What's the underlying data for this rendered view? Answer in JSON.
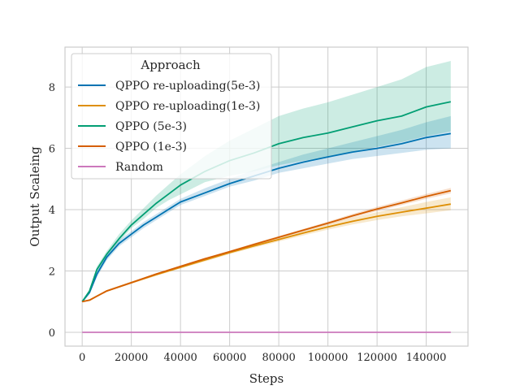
{
  "chart_data": {
    "type": "line",
    "title": "",
    "xlabel": "Steps",
    "ylabel": "Output Scaleing",
    "xlim": [
      -7000,
      157000
    ],
    "ylim": [
      -0.45,
      9.3
    ],
    "xticks": [
      0,
      20000,
      40000,
      60000,
      80000,
      100000,
      120000,
      140000
    ],
    "yticks": [
      0,
      2,
      4,
      6,
      8
    ],
    "grid": true,
    "legend": {
      "title": "Approach",
      "placement": "top-left"
    },
    "series": [
      {
        "name": "QPPO re-uploading(5e-3)",
        "color": "#0173b2",
        "x": [
          0,
          3000,
          6000,
          10000,
          15000,
          20000,
          25000,
          30000,
          35000,
          40000,
          50000,
          60000,
          70000,
          80000,
          90000,
          100000,
          110000,
          120000,
          130000,
          140000,
          150000
        ],
        "y": [
          1.0,
          1.3,
          1.9,
          2.45,
          2.9,
          3.2,
          3.5,
          3.75,
          4.0,
          4.25,
          4.55,
          4.85,
          5.1,
          5.35,
          5.55,
          5.72,
          5.88,
          6.0,
          6.15,
          6.35,
          6.48
        ],
        "lower": [
          1.0,
          1.25,
          1.8,
          2.35,
          2.8,
          3.1,
          3.4,
          3.65,
          3.9,
          4.15,
          4.45,
          4.75,
          4.95,
          5.2,
          5.35,
          5.5,
          5.65,
          5.75,
          5.85,
          5.95,
          6.0
        ],
        "upper": [
          1.0,
          1.35,
          2.0,
          2.55,
          3.0,
          3.3,
          3.6,
          3.85,
          4.1,
          4.35,
          4.7,
          5.0,
          5.3,
          5.55,
          5.8,
          6.0,
          6.2,
          6.4,
          6.6,
          6.85,
          7.05
        ]
      },
      {
        "name": "QPPO re-uploading(1e-3)",
        "color": "#de8f05",
        "x": [
          0,
          3000,
          6000,
          10000,
          20000,
          30000,
          40000,
          50000,
          60000,
          70000,
          80000,
          90000,
          100000,
          110000,
          120000,
          130000,
          140000,
          150000
        ],
        "y": [
          1.0,
          1.05,
          1.18,
          1.35,
          1.62,
          1.88,
          2.12,
          2.36,
          2.6,
          2.82,
          3.03,
          3.24,
          3.44,
          3.62,
          3.78,
          3.92,
          4.05,
          4.18
        ],
        "lower": [
          1.0,
          1.02,
          1.15,
          1.32,
          1.58,
          1.84,
          2.08,
          2.31,
          2.55,
          2.76,
          2.96,
          3.16,
          3.35,
          3.52,
          3.66,
          3.78,
          3.88,
          3.98
        ],
        "upper": [
          1.0,
          1.08,
          1.21,
          1.38,
          1.66,
          1.92,
          2.16,
          2.41,
          2.65,
          2.88,
          3.1,
          3.32,
          3.53,
          3.74,
          3.92,
          4.08,
          4.25,
          4.4
        ]
      },
      {
        "name": "QPPO (5e-3)",
        "color": "#029e73",
        "x": [
          0,
          3000,
          6000,
          10000,
          15000,
          20000,
          25000,
          30000,
          35000,
          40000,
          50000,
          60000,
          70000,
          80000,
          90000,
          100000,
          110000,
          120000,
          130000,
          140000,
          150000
        ],
        "y": [
          1.0,
          1.35,
          2.05,
          2.55,
          3.05,
          3.5,
          3.85,
          4.2,
          4.5,
          4.8,
          5.25,
          5.6,
          5.85,
          6.15,
          6.35,
          6.5,
          6.7,
          6.9,
          7.05,
          7.35,
          7.52
        ],
        "lower": [
          1.0,
          1.3,
          1.95,
          2.45,
          2.95,
          3.4,
          3.7,
          4.05,
          4.3,
          4.5,
          4.9,
          5.1,
          5.25,
          5.45,
          5.6,
          5.7,
          5.9,
          6.05,
          6.2,
          6.4,
          6.55
        ],
        "upper": [
          1.0,
          1.4,
          2.15,
          2.65,
          3.2,
          3.65,
          4.05,
          4.45,
          4.8,
          5.15,
          5.75,
          6.25,
          6.65,
          7.05,
          7.3,
          7.5,
          7.75,
          8.0,
          8.25,
          8.65,
          8.85
        ]
      },
      {
        "name": "QPPO (1e-3)",
        "color": "#d55e00",
        "x": [
          0,
          3000,
          6000,
          10000,
          20000,
          30000,
          40000,
          50000,
          60000,
          70000,
          80000,
          90000,
          100000,
          110000,
          120000,
          130000,
          140000,
          150000
        ],
        "y": [
          1.0,
          1.05,
          1.18,
          1.35,
          1.62,
          1.9,
          2.15,
          2.4,
          2.63,
          2.87,
          3.1,
          3.33,
          3.56,
          3.8,
          4.02,
          4.22,
          4.43,
          4.62
        ],
        "lower": [
          1.0,
          1.03,
          1.16,
          1.33,
          1.6,
          1.88,
          2.12,
          2.37,
          2.6,
          2.83,
          3.06,
          3.29,
          3.51,
          3.74,
          3.95,
          4.15,
          4.35,
          4.53
        ],
        "upper": [
          1.0,
          1.07,
          1.2,
          1.37,
          1.64,
          1.92,
          2.18,
          2.43,
          2.66,
          2.91,
          3.14,
          3.37,
          3.61,
          3.86,
          4.09,
          4.3,
          4.51,
          4.71
        ]
      },
      {
        "name": "Random",
        "color": "#cc78bc",
        "x": [
          0,
          150000
        ],
        "y": [
          0.0,
          0.0
        ]
      }
    ]
  }
}
